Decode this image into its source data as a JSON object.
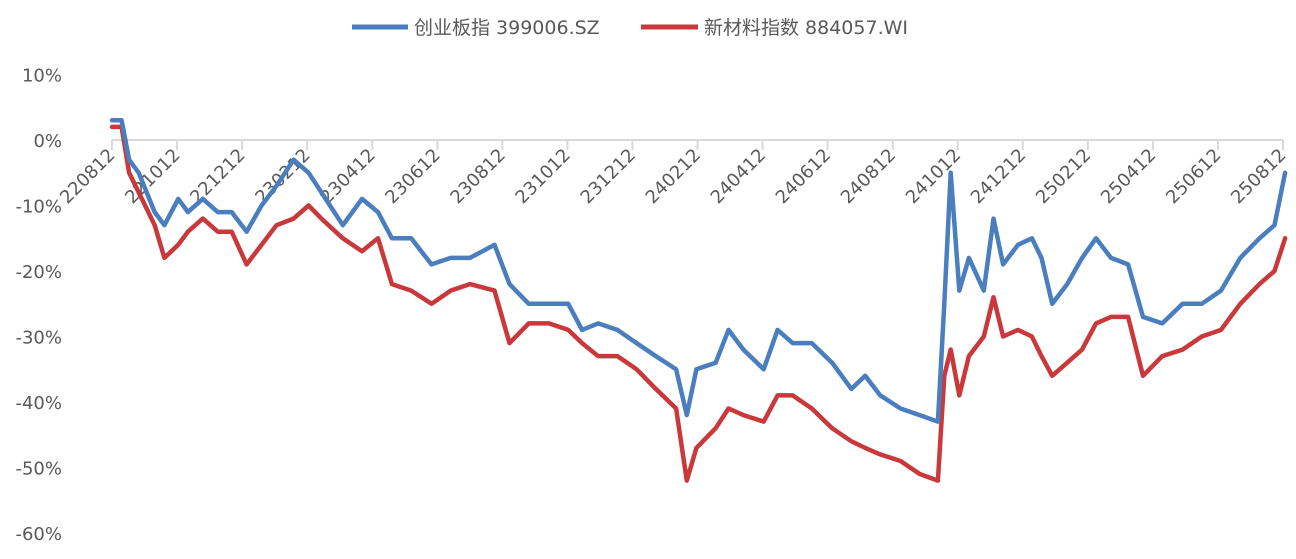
{
  "chart_data": {
    "type": "line",
    "title": "",
    "xlabel": "",
    "ylabel": "",
    "ylim": [
      -60,
      10
    ],
    "yticks": [
      "10%",
      "0%",
      "-10%",
      "-20%",
      "-30%",
      "-40%",
      "-50%",
      "-60%"
    ],
    "ytick_values": [
      10,
      0,
      -10,
      -20,
      -30,
      -40,
      -50,
      -60
    ],
    "xlim": [
      "2022-08-12",
      "2025-08-12"
    ],
    "xtick_labels": [
      "220812",
      "221012",
      "221212",
      "230212",
      "230412",
      "230612",
      "230812",
      "231012",
      "231212",
      "240212",
      "240412",
      "240612",
      "240812",
      "241012",
      "241212",
      "250212",
      "250412",
      "250612",
      "250812"
    ],
    "grid": "zero-line only",
    "legend_position": "top",
    "x": [
      "2022-08-12",
      "2022-08-21",
      "2022-08-28",
      "2022-09-06",
      "2022-09-21",
      "2022-09-30",
      "2022-10-13",
      "2022-10-22",
      "2022-11-05",
      "2022-11-19",
      "2022-12-02",
      "2022-12-16",
      "2022-12-30",
      "2023-01-13",
      "2023-01-29",
      "2023-02-12",
      "2023-02-24",
      "2023-03-16",
      "2023-04-03",
      "2023-04-18",
      "2023-05-01",
      "2023-05-19",
      "2023-06-07",
      "2023-06-25",
      "2023-07-13",
      "2023-08-05",
      "2023-08-19",
      "2023-09-06",
      "2023-09-25",
      "2023-10-13",
      "2023-10-26",
      "2023-11-10",
      "2023-11-28",
      "2023-12-16",
      "2024-01-03",
      "2024-01-22",
      "2024-02-01",
      "2024-02-10",
      "2024-02-28",
      "2024-03-11",
      "2024-03-25",
      "2024-04-13",
      "2024-04-26",
      "2024-05-10",
      "2024-05-28",
      "2024-06-16",
      "2024-07-04",
      "2024-07-17",
      "2024-07-31",
      "2024-08-19",
      "2024-09-06",
      "2024-09-23",
      "2024-09-29",
      "2024-10-05",
      "2024-10-13",
      "2024-10-22",
      "2024-11-05",
      "2024-11-14",
      "2024-11-23",
      "2024-12-07",
      "2024-12-20",
      "2024-12-29",
      "2025-01-08",
      "2025-01-22",
      "2025-02-05",
      "2025-02-18",
      "2025-03-04",
      "2025-03-20",
      "2025-04-03",
      "2025-04-21",
      "2025-05-10",
      "2025-05-28",
      "2025-06-15",
      "2025-07-03",
      "2025-07-21",
      "2025-08-04",
      "2025-08-14"
    ],
    "series": [
      {
        "name": "创业板指 399006.SZ",
        "color": "#4a7ebf",
        "values": [
          3,
          3,
          -3,
          -5,
          -11,
          -13,
          -9,
          -11,
          -9,
          -11,
          -11,
          -14,
          -10,
          -7,
          -3,
          -5,
          -8,
          -13,
          -9,
          -11,
          -15,
          -15,
          -19,
          -18,
          -18,
          -16,
          -22,
          -25,
          -25,
          -25,
          -29,
          -28,
          -29,
          -31,
          -33,
          -35,
          -42,
          -35,
          -34,
          -29,
          -32,
          -35,
          -29,
          -31,
          -31,
          -34,
          -38,
          -36,
          -39,
          -41,
          -42,
          -43,
          -25,
          -5,
          -23,
          -18,
          -23,
          -12,
          -19,
          -16,
          -15,
          -18,
          -25,
          -22,
          -18,
          -15,
          -18,
          -19,
          -27,
          -28,
          -25,
          -25,
          -23,
          -18,
          -15,
          -13,
          -5
        ]
      },
      {
        "name": "新材料指数 884057.WI",
        "color": "#c9393c",
        "values": [
          2,
          2,
          -5,
          -8,
          -13,
          -18,
          -16,
          -14,
          -12,
          -14,
          -14,
          -19,
          -16,
          -13,
          -12,
          -10,
          -12,
          -15,
          -17,
          -15,
          -22,
          -23,
          -25,
          -23,
          -22,
          -23,
          -31,
          -28,
          -28,
          -29,
          -31,
          -33,
          -33,
          -35,
          -38,
          -41,
          -52,
          -47,
          -44,
          -41,
          -42,
          -43,
          -39,
          -39,
          -41,
          -44,
          -46,
          -47,
          -48,
          -49,
          -51,
          -52,
          -36,
          -32,
          -39,
          -33,
          -30,
          -24,
          -30,
          -29,
          -30,
          -33,
          -36,
          -34,
          -32,
          -28,
          -27,
          -27,
          -36,
          -33,
          -32,
          -30,
          -29,
          -25,
          -22,
          -20,
          -15
        ]
      }
    ]
  }
}
